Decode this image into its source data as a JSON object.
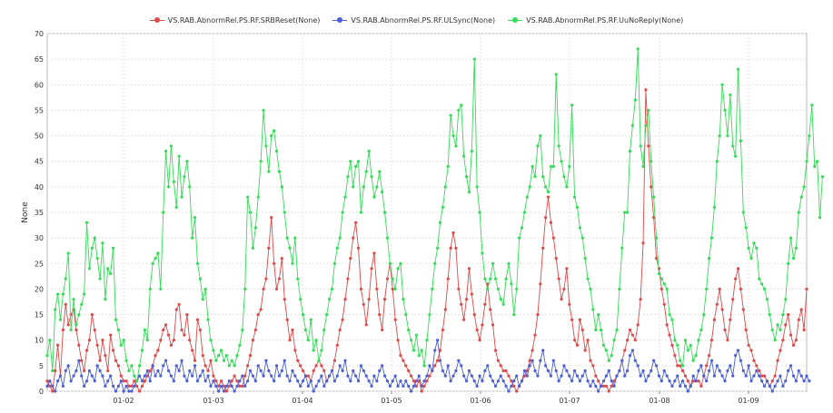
{
  "chart_data": {
    "type": "line",
    "ylabel": "None",
    "ylim": [
      0,
      70
    ],
    "yticks": [
      0,
      5,
      10,
      15,
      20,
      25,
      30,
      35,
      40,
      45,
      50,
      55,
      60,
      65,
      70
    ],
    "xticks": [
      "01-02",
      "01-03",
      "01-04",
      "01-05",
      "01-06",
      "01-07",
      "01-08",
      "01-09"
    ],
    "grid": true,
    "legend_position": "top",
    "series": [
      {
        "name": "VS.RAB.AbnormRel.PS.RF.SRBReset(None)",
        "color": "#e04848",
        "values": [
          2,
          1,
          0,
          4,
          9,
          3,
          12,
          17,
          13,
          15,
          16,
          12,
          9,
          6,
          4,
          8,
          10,
          15,
          12,
          9,
          6,
          10,
          7,
          4,
          11,
          8,
          6,
          5,
          3,
          2,
          2,
          1,
          1,
          2,
          1,
          0,
          1,
          2,
          3,
          4,
          5,
          7,
          8,
          10,
          12,
          13,
          11,
          9,
          10,
          16,
          17,
          12,
          11,
          15,
          10,
          8,
          6,
          14,
          12,
          7,
          5,
          4,
          6,
          3,
          2,
          1,
          2,
          1,
          0,
          1,
          2,
          3,
          2,
          1,
          1,
          3,
          5,
          7,
          10,
          12,
          15,
          16,
          20,
          22,
          28,
          34,
          25,
          20,
          22,
          26,
          18,
          14,
          10,
          12,
          8,
          6,
          5,
          4,
          3,
          3,
          2,
          4,
          5,
          6,
          5,
          4,
          2,
          3,
          4,
          6,
          9,
          12,
          14,
          18,
          22,
          26,
          30,
          33,
          28,
          20,
          17,
          13,
          18,
          24,
          27,
          20,
          15,
          12,
          18,
          22,
          25,
          20,
          14,
          10,
          7,
          6,
          5,
          4,
          3,
          2,
          1,
          2,
          0,
          1,
          2,
          3,
          4,
          5,
          6,
          8,
          12,
          16,
          22,
          28,
          31,
          28,
          20,
          17,
          14,
          18,
          24,
          19,
          15,
          12,
          10,
          13,
          17,
          21,
          16,
          13,
          8,
          6,
          5,
          4,
          4,
          3,
          2,
          1,
          0,
          1,
          2,
          3,
          4,
          6,
          8,
          11,
          15,
          21,
          28,
          34,
          38,
          33,
          30,
          26,
          22,
          18,
          20,
          24,
          17,
          14,
          10,
          9,
          14,
          12,
          8,
          10,
          6,
          5,
          3,
          2,
          1,
          1,
          1,
          0,
          1,
          2,
          3,
          4,
          6,
          8,
          10,
          12,
          11,
          10,
          13,
          18,
          29,
          59,
          48,
          40,
          34,
          26,
          24,
          20,
          17,
          13,
          11,
          9,
          7,
          5,
          5,
          4,
          3,
          2,
          1,
          2,
          2,
          2,
          1,
          3,
          5,
          7,
          10,
          14,
          17,
          20,
          16,
          12,
          10,
          14,
          18,
          22,
          24,
          20,
          16,
          12,
          9,
          8,
          6,
          5,
          4,
          3,
          3,
          2,
          1,
          2,
          3,
          6,
          8,
          10,
          13,
          15,
          11,
          9,
          10,
          14,
          16,
          12,
          20
        ]
      },
      {
        "name": "VS.RAB.AbnormRel.PS.RF.ULSync(None)",
        "color": "#4a5fd8",
        "values": [
          1,
          2,
          1,
          0,
          2,
          3,
          1,
          4,
          5,
          2,
          3,
          4,
          6,
          3,
          1,
          2,
          4,
          3,
          2,
          5,
          4,
          3,
          1,
          2,
          3,
          1,
          0,
          1,
          2,
          0,
          1,
          0,
          0,
          1,
          2,
          3,
          2,
          3,
          4,
          2,
          5,
          3,
          4,
          3,
          5,
          6,
          4,
          3,
          2,
          5,
          4,
          6,
          3,
          2,
          4,
          3,
          5,
          2,
          3,
          4,
          2,
          3,
          1,
          2,
          1,
          0,
          1,
          0,
          1,
          2,
          1,
          0,
          1,
          2,
          3,
          1,
          2,
          4,
          3,
          2,
          5,
          4,
          3,
          6,
          4,
          3,
          2,
          5,
          3,
          4,
          6,
          3,
          2,
          4,
          3,
          2,
          1,
          2,
          3,
          1,
          2,
          0,
          1,
          2,
          3,
          1,
          2,
          3,
          4,
          2,
          3,
          5,
          4,
          6,
          3,
          2,
          4,
          3,
          2,
          5,
          4,
          3,
          2,
          1,
          3,
          2,
          4,
          5,
          3,
          2,
          1,
          2,
          3,
          1,
          2,
          1,
          2,
          1,
          0,
          1,
          2,
          3,
          1,
          2,
          3,
          5,
          4,
          8,
          10,
          6,
          4,
          3,
          5,
          2,
          3,
          4,
          6,
          5,
          3,
          2,
          4,
          3,
          2,
          1,
          3,
          2,
          4,
          5,
          3,
          2,
          1,
          2,
          3,
          2,
          1,
          0,
          1,
          2,
          3,
          1,
          2,
          4,
          3,
          5,
          6,
          4,
          3,
          6,
          8,
          5,
          4,
          3,
          6,
          4,
          2,
          3,
          5,
          4,
          3,
          2,
          4,
          3,
          2,
          3,
          4,
          2,
          1,
          2,
          1,
          0,
          1,
          2,
          3,
          4,
          2,
          1,
          3,
          4,
          6,
          3,
          4,
          7,
          8,
          6,
          5,
          3,
          4,
          2,
          3,
          4,
          6,
          5,
          3,
          2,
          4,
          3,
          2,
          1,
          2,
          3,
          1,
          2,
          1,
          0,
          1,
          3,
          2,
          4,
          5,
          3,
          2,
          4,
          6,
          3,
          5,
          4,
          3,
          2,
          4,
          5,
          3,
          7,
          8,
          6,
          4,
          3,
          5,
          2,
          3,
          4,
          3,
          2,
          1,
          2,
          1,
          0,
          1,
          2,
          3,
          1,
          2,
          4,
          5,
          3,
          2,
          4,
          3,
          2,
          3,
          2
        ]
      },
      {
        "name": "VS.RAB.AbnormRel.PS.RF.UuNoReply(None)",
        "color": "#33dd55",
        "values": [
          7,
          10,
          4,
          16,
          19,
          14,
          19,
          22,
          27,
          12,
          18,
          13,
          15,
          17,
          19,
          33,
          24,
          28,
          30,
          26,
          22,
          29,
          18,
          24,
          23,
          28,
          14,
          12,
          9,
          10,
          6,
          4,
          5,
          3,
          2,
          5,
          8,
          12,
          10,
          20,
          25,
          26,
          27,
          20,
          35,
          47,
          40,
          48,
          41,
          36,
          46,
          38,
          42,
          45,
          40,
          30,
          34,
          25,
          22,
          18,
          20,
          14,
          10,
          8,
          6,
          7,
          8,
          6,
          7,
          5,
          6,
          5,
          7,
          9,
          12,
          20,
          38,
          35,
          28,
          32,
          38,
          45,
          55,
          48,
          43,
          50,
          51,
          47,
          43,
          40,
          35,
          30,
          28,
          25,
          30,
          22,
          18,
          15,
          12,
          10,
          14,
          8,
          10,
          6,
          8,
          12,
          15,
          18,
          20,
          25,
          28,
          30,
          35,
          38,
          42,
          45,
          40,
          44,
          45,
          35,
          40,
          43,
          47,
          42,
          38,
          40,
          43,
          39,
          35,
          30,
          25,
          22,
          20,
          24,
          25,
          18,
          15,
          12,
          10,
          8,
          11,
          7,
          8,
          5,
          10,
          15,
          20,
          25,
          28,
          33,
          36,
          40,
          44,
          54,
          50,
          48,
          55,
          56,
          46,
          42,
          39,
          47,
          65,
          40,
          35,
          27,
          22,
          20,
          22,
          25,
          22,
          20,
          18,
          17,
          22,
          25,
          21,
          15,
          20,
          30,
          32,
          35,
          38,
          40,
          44,
          42,
          48,
          50,
          42,
          40,
          39,
          44,
          44,
          62,
          48,
          45,
          42,
          40,
          44,
          56,
          38,
          36,
          32,
          30,
          26,
          22,
          20,
          16,
          12,
          15,
          12,
          9,
          8,
          6,
          7,
          10,
          12,
          20,
          28,
          35,
          35,
          47,
          52,
          57,
          67,
          48,
          44,
          52,
          55,
          45,
          38,
          30,
          23,
          22,
          21,
          20,
          15,
          14,
          10,
          9,
          6,
          5,
          10,
          8,
          9,
          6,
          7,
          10,
          12,
          15,
          20,
          26,
          30,
          36,
          45,
          50,
          60,
          55,
          50,
          58,
          48,
          46,
          63,
          49,
          35,
          32,
          28,
          26,
          29,
          28,
          22,
          21,
          20,
          18,
          15,
          12,
          10,
          13,
          12,
          15,
          18,
          25,
          30,
          26,
          28,
          35,
          38,
          40,
          45,
          50,
          56,
          44,
          45,
          34,
          42
        ]
      }
    ]
  }
}
